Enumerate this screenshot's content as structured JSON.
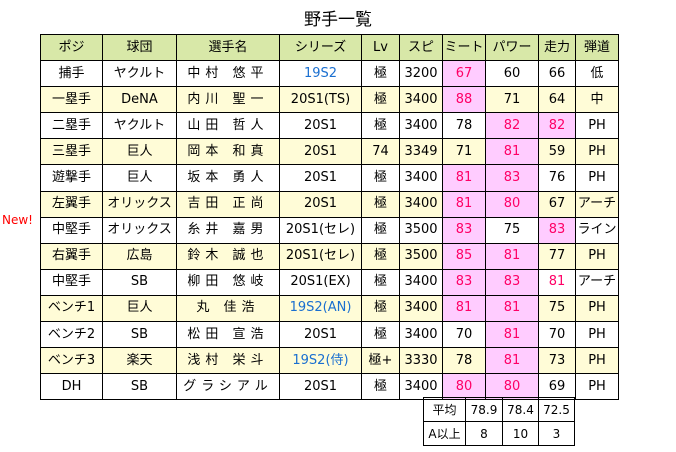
{
  "title": "野手一覧",
  "new_label": "New!",
  "headers": [
    "ポジ",
    "球団",
    "選手名",
    "シリーズ",
    "Lv",
    "スピ",
    "ミート",
    "パワー",
    "走力",
    "弾道"
  ],
  "colors": {
    "header_bg": "#d8e8a8",
    "alt_row_bg": "#fffcd7",
    "highlight_bg": "#ffccff",
    "highlight_text": "#ff0066",
    "series_link": "#1a6fd0"
  },
  "players": [
    {
      "pos": "捕手",
      "team": "ヤクルト",
      "name": "中村 悠平",
      "series": "19S2",
      "lv": "極",
      "spi": "3200",
      "meet": "67",
      "power": "60",
      "speed": "66",
      "traj": "低",
      "series_blue": true,
      "hl_meet": true,
      "hl_power": false,
      "hl_speed": false,
      "speed_text_only": false,
      "alt": false
    },
    {
      "pos": "一塁手",
      "team": "DeNA",
      "name": "内川 聖一",
      "series": "20S1(TS)",
      "lv": "極",
      "spi": "3400",
      "meet": "88",
      "power": "71",
      "speed": "64",
      "traj": "中",
      "series_blue": false,
      "hl_meet": true,
      "hl_power": false,
      "hl_speed": false,
      "speed_text_only": false,
      "alt": true
    },
    {
      "pos": "二塁手",
      "team": "ヤクルト",
      "name": "山田 哲人",
      "series": "20S1",
      "lv": "極",
      "spi": "3400",
      "meet": "78",
      "power": "82",
      "speed": "82",
      "traj": "PH",
      "series_blue": false,
      "hl_meet": false,
      "hl_power": true,
      "hl_speed": true,
      "speed_text_only": false,
      "alt": false
    },
    {
      "pos": "三塁手",
      "team": "巨人",
      "name": "岡本 和真",
      "series": "20S1",
      "lv": "74",
      "spi": "3349",
      "meet": "71",
      "power": "81",
      "speed": "59",
      "traj": "PH",
      "series_blue": false,
      "hl_meet": false,
      "hl_power": true,
      "hl_speed": false,
      "speed_text_only": false,
      "alt": true
    },
    {
      "pos": "遊撃手",
      "team": "巨人",
      "name": "坂本 勇人",
      "series": "20S1",
      "lv": "極",
      "spi": "3400",
      "meet": "81",
      "power": "83",
      "speed": "76",
      "traj": "PH",
      "series_blue": false,
      "hl_meet": true,
      "hl_power": true,
      "hl_speed": false,
      "speed_text_only": false,
      "alt": false
    },
    {
      "pos": "左翼手",
      "team": "オリックス",
      "name": "吉田 正尚",
      "series": "20S1",
      "lv": "極",
      "spi": "3400",
      "meet": "81",
      "power": "80",
      "speed": "67",
      "traj": "アーチ",
      "series_blue": false,
      "hl_meet": true,
      "hl_power": true,
      "hl_speed": false,
      "speed_text_only": false,
      "alt": true
    },
    {
      "pos": "中堅手",
      "team": "オリックス",
      "name": "糸井 嘉男",
      "series": "20S1(セレ)",
      "lv": "極",
      "spi": "3500",
      "meet": "83",
      "power": "75",
      "speed": "83",
      "traj": "ライン",
      "series_blue": false,
      "hl_meet": true,
      "hl_power": false,
      "hl_speed": true,
      "speed_text_only": false,
      "alt": false
    },
    {
      "pos": "右翼手",
      "team": "広島",
      "name": "鈴木 誠也",
      "series": "20S1(セレ)",
      "lv": "極",
      "spi": "3500",
      "meet": "85",
      "power": "81",
      "speed": "77",
      "traj": "PH",
      "series_blue": false,
      "hl_meet": true,
      "hl_power": true,
      "hl_speed": false,
      "speed_text_only": false,
      "alt": true
    },
    {
      "pos": "中堅手",
      "team": "SB",
      "name": "柳田 悠岐",
      "series": "20S1(EX)",
      "lv": "極",
      "spi": "3400",
      "meet": "83",
      "power": "83",
      "speed": "81",
      "traj": "アーチ",
      "series_blue": false,
      "hl_meet": true,
      "hl_power": true,
      "hl_speed": false,
      "speed_text_only": true,
      "alt": false
    },
    {
      "pos": "ベンチ1",
      "team": "巨人",
      "name": "丸 佳浩",
      "series": "19S2(AN)",
      "lv": "極",
      "spi": "3400",
      "meet": "81",
      "power": "81",
      "speed": "75",
      "traj": "PH",
      "series_blue": true,
      "hl_meet": true,
      "hl_power": true,
      "hl_speed": false,
      "speed_text_only": false,
      "alt": true
    },
    {
      "pos": "ベンチ2",
      "team": "SB",
      "name": "松田 宣浩",
      "series": "20S1",
      "lv": "極",
      "spi": "3400",
      "meet": "70",
      "power": "81",
      "speed": "70",
      "traj": "PH",
      "series_blue": false,
      "hl_meet": false,
      "hl_power": true,
      "hl_speed": false,
      "speed_text_only": false,
      "alt": false
    },
    {
      "pos": "ベンチ3",
      "team": "楽天",
      "name": "浅村 栄斗",
      "series": "19S2(侍)",
      "lv": "極+",
      "spi": "3330",
      "meet": "78",
      "power": "81",
      "speed": "73",
      "traj": "PH",
      "series_blue": true,
      "hl_meet": false,
      "hl_power": true,
      "hl_speed": false,
      "speed_text_only": false,
      "alt": true
    },
    {
      "pos": "DH",
      "team": "SB",
      "name": "グラシアル",
      "series": "20S1",
      "lv": "極",
      "spi": "3400",
      "meet": "80",
      "power": "80",
      "speed": "69",
      "traj": "PH",
      "series_blue": false,
      "hl_meet": true,
      "hl_power": true,
      "hl_speed": false,
      "speed_text_only": false,
      "alt": false
    }
  ],
  "stats": {
    "avg_label": "平均",
    "avg_meet": "78.9",
    "avg_power": "78.4",
    "avg_speed": "72.5",
    "a_label": "A以上",
    "a_meet": "8",
    "a_power": "10",
    "a_speed": "3"
  }
}
